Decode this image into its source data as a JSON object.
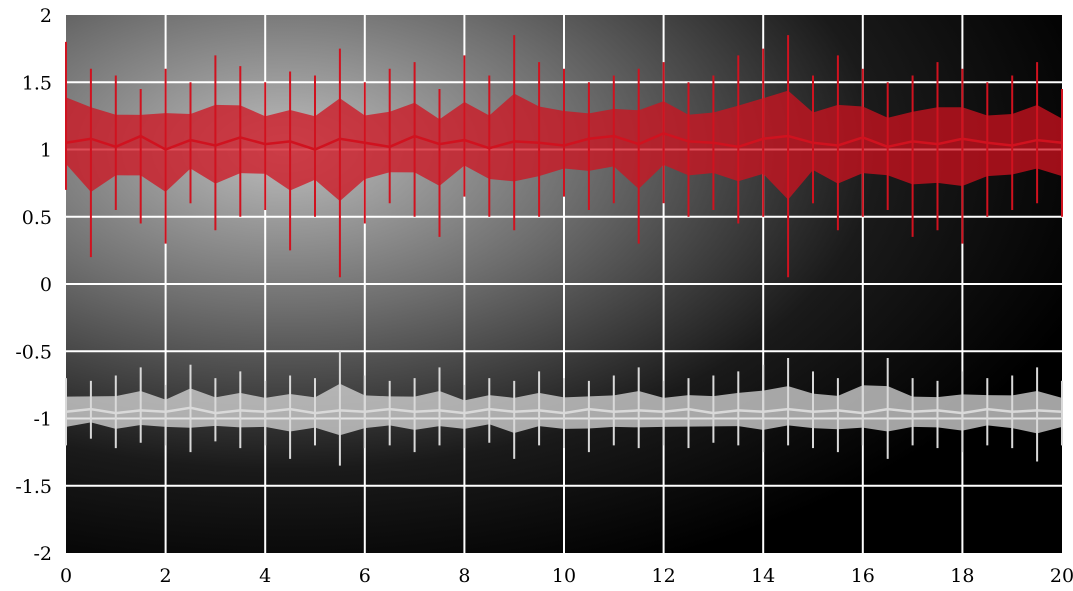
{
  "chart_data": {
    "type": "line",
    "xlim": [
      0,
      20
    ],
    "ylim": [
      -2,
      2
    ],
    "x_ticks": [
      "0",
      "2",
      "4",
      "6",
      "8",
      "10",
      "12",
      "14",
      "16",
      "18",
      "20"
    ],
    "y_ticks": [
      "2",
      "1.5",
      "1",
      "0.5",
      "0",
      "-0.5",
      "-1",
      "-1.5",
      "-2"
    ],
    "grid": true,
    "background": "radial gradient, light gray upper-left to black right",
    "series": [
      {
        "color": "#d0121f",
        "x": [
          0,
          0.5,
          1,
          1.5,
          2,
          2.5,
          3,
          3.5,
          4,
          4.5,
          5,
          5.5,
          6,
          6.5,
          7,
          7.5,
          8,
          8.5,
          9,
          9.5,
          10,
          10.5,
          11,
          11.5,
          12,
          12.5,
          13,
          13.5,
          14,
          14.5,
          15,
          15.5,
          16,
          16.5,
          17,
          17.5,
          18,
          18.5,
          19,
          19.5,
          20
        ],
        "y_mean": [
          1.05,
          1.08,
          1.02,
          1.1,
          1.0,
          1.07,
          1.03,
          1.09,
          1.04,
          1.06,
          1.0,
          1.08,
          1.05,
          1.02,
          1.1,
          1.04,
          1.07,
          1.01,
          1.06,
          1.05,
          1.03,
          1.08,
          1.1,
          1.04,
          1.12,
          1.06,
          1.05,
          1.02,
          1.08,
          1.1,
          1.05,
          1.03,
          1.09,
          1.02,
          1.06,
          1.04,
          1.08,
          1.05,
          1.03,
          1.07,
          1.05
        ],
        "y_max": [
          1.8,
          1.6,
          1.55,
          1.45,
          1.6,
          1.5,
          1.7,
          1.62,
          1.5,
          1.58,
          1.55,
          1.75,
          1.5,
          1.6,
          1.65,
          1.45,
          1.7,
          1.55,
          1.85,
          1.65,
          1.6,
          1.5,
          1.55,
          1.6,
          1.65,
          1.5,
          1.55,
          1.7,
          1.75,
          1.85,
          1.55,
          1.7,
          1.6,
          1.5,
          1.55,
          1.65,
          1.6,
          1.5,
          1.55,
          1.65,
          1.45
        ],
        "y_min": [
          0.7,
          0.2,
          0.55,
          0.45,
          0.3,
          0.6,
          0.4,
          0.5,
          0.55,
          0.25,
          0.5,
          0.05,
          0.45,
          0.6,
          0.5,
          0.35,
          0.65,
          0.5,
          0.4,
          0.5,
          0.65,
          0.55,
          0.6,
          0.3,
          0.6,
          0.5,
          0.55,
          0.45,
          0.5,
          0.05,
          0.6,
          0.4,
          0.5,
          0.55,
          0.35,
          0.4,
          0.3,
          0.5,
          0.55,
          0.6,
          0.5
        ]
      },
      {
        "color": "#d9d9d9",
        "x": [
          0,
          0.5,
          1,
          1.5,
          2,
          2.5,
          3,
          3.5,
          4,
          4.5,
          5,
          5.5,
          6,
          6.5,
          7,
          7.5,
          8,
          8.5,
          9,
          9.5,
          10,
          10.5,
          11,
          11.5,
          12,
          12.5,
          13,
          13.5,
          14,
          14.5,
          15,
          15.5,
          16,
          16.5,
          17,
          17.5,
          18,
          18.5,
          19,
          19.5,
          20
        ],
        "y_mean": [
          -0.95,
          -0.93,
          -0.96,
          -0.94,
          -0.95,
          -0.92,
          -0.96,
          -0.94,
          -0.95,
          -0.93,
          -0.96,
          -0.94,
          -0.95,
          -0.93,
          -0.95,
          -0.94,
          -0.96,
          -0.93,
          -0.95,
          -0.94,
          -0.96,
          -0.93,
          -0.95,
          -0.94,
          -0.95,
          -0.93,
          -0.96,
          -0.94,
          -0.95,
          -0.93,
          -0.95,
          -0.94,
          -0.96,
          -0.93,
          -0.95,
          -0.94,
          -0.96,
          -0.93,
          -0.95,
          -0.94,
          -0.95
        ],
        "y_max": [
          -0.7,
          -0.72,
          -0.68,
          -0.62,
          -0.75,
          -0.6,
          -0.7,
          -0.65,
          -0.72,
          -0.68,
          -0.7,
          -0.5,
          -0.68,
          -0.72,
          -0.7,
          -0.62,
          -0.75,
          -0.7,
          -0.72,
          -0.65,
          -0.7,
          -0.72,
          -0.68,
          -0.62,
          -0.72,
          -0.7,
          -0.68,
          -0.65,
          -0.6,
          -0.55,
          -0.65,
          -0.7,
          -0.5,
          -0.55,
          -0.7,
          -0.72,
          -0.65,
          -0.7,
          -0.68,
          -0.62,
          -0.72
        ],
        "y_min": [
          -1.2,
          -1.15,
          -1.22,
          -1.18,
          -1.2,
          -1.25,
          -1.17,
          -1.22,
          -1.2,
          -1.3,
          -1.2,
          -1.35,
          -1.22,
          -1.2,
          -1.25,
          -1.2,
          -1.22,
          -1.18,
          -1.3,
          -1.2,
          -1.22,
          -1.25,
          -1.2,
          -1.22,
          -1.2,
          -1.22,
          -1.18,
          -1.2,
          -1.25,
          -1.2,
          -1.22,
          -1.25,
          -1.2,
          -1.3,
          -1.2,
          -1.22,
          -1.25,
          -1.2,
          -1.22,
          -1.32,
          -1.2
        ]
      }
    ]
  }
}
